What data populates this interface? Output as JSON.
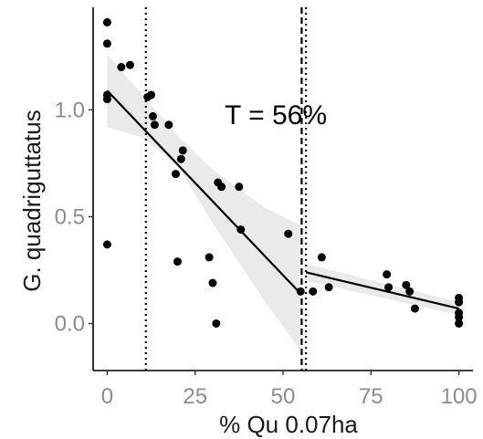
{
  "chart_data": {
    "type": "scatter",
    "title": "",
    "xlabel": "% Qu 0.07ha",
    "ylabel": "G. quadriguttatus",
    "xlim": [
      -4,
      104
    ],
    "ylim": [
      -0.22,
      1.48
    ],
    "x_ticks": [
      0,
      25,
      50,
      75,
      100
    ],
    "x_tick_labels": [
      "0",
      "25",
      "50",
      "75",
      "100"
    ],
    "y_ticks": [
      0.0,
      0.5,
      1.0
    ],
    "y_tick_labels": [
      "0.0",
      "0.5",
      "1.0"
    ],
    "grid": false,
    "legend": "none",
    "annotation": "T = 56%",
    "vlines": [
      {
        "x": 11,
        "style": "dotted"
      },
      {
        "x": 55.3,
        "style": "dashed"
      },
      {
        "x": 56.5,
        "style": "dotted"
      }
    ],
    "points": [
      {
        "x": 0,
        "y": 1.41
      },
      {
        "x": 0,
        "y": 1.31
      },
      {
        "x": 0,
        "y": 1.07
      },
      {
        "x": 0,
        "y": 1.05
      },
      {
        "x": 0,
        "y": 0.37
      },
      {
        "x": 4,
        "y": 1.2
      },
      {
        "x": 6.5,
        "y": 1.21
      },
      {
        "x": 11.5,
        "y": 1.06
      },
      {
        "x": 12.5,
        "y": 1.07
      },
      {
        "x": 13,
        "y": 0.97
      },
      {
        "x": 13.5,
        "y": 0.93
      },
      {
        "x": 17.5,
        "y": 0.93
      },
      {
        "x": 19.5,
        "y": 0.7
      },
      {
        "x": 20,
        "y": 0.29
      },
      {
        "x": 21,
        "y": 0.77
      },
      {
        "x": 21.5,
        "y": 0.81
      },
      {
        "x": 29,
        "y": 0.31
      },
      {
        "x": 30,
        "y": 0.19
      },
      {
        "x": 31,
        "y": 0.0
      },
      {
        "x": 31.5,
        "y": 0.66
      },
      {
        "x": 32.5,
        "y": 0.64
      },
      {
        "x": 37.5,
        "y": 0.64
      },
      {
        "x": 38,
        "y": 0.44
      },
      {
        "x": 51.5,
        "y": 0.42
      },
      {
        "x": 55,
        "y": 0.15
      },
      {
        "x": 58.5,
        "y": 0.15
      },
      {
        "x": 61,
        "y": 0.31
      },
      {
        "x": 63,
        "y": 0.17
      },
      {
        "x": 79.5,
        "y": 0.23
      },
      {
        "x": 80,
        "y": 0.17
      },
      {
        "x": 85,
        "y": 0.18
      },
      {
        "x": 86,
        "y": 0.15
      },
      {
        "x": 87.5,
        "y": 0.07
      },
      {
        "x": 100,
        "y": 0.12
      },
      {
        "x": 100,
        "y": 0.1
      },
      {
        "x": 100,
        "y": 0.05
      },
      {
        "x": 100,
        "y": 0.03
      },
      {
        "x": 100,
        "y": 0.0
      }
    ],
    "fit_segments": [
      {
        "x": [
          0,
          55
        ],
        "y": [
          1.09,
          0.14
        ],
        "ci_upper": [
          1.26,
          1.07,
          0.88,
          0.72,
          0.54,
          0.46
        ],
        "ci_lower": [
          0.92,
          0.87,
          0.74,
          0.47,
          0.1,
          -0.13
        ],
        "ci_x": [
          0,
          10,
          20,
          30,
          45,
          55
        ]
      },
      {
        "x": [
          56.5,
          100
        ],
        "y": [
          0.24,
          0.07
        ],
        "ci_upper": [
          0.28,
          0.1
        ],
        "ci_lower": [
          0.2,
          0.04
        ],
        "ci_x": [
          56.5,
          100
        ]
      }
    ],
    "colors": {
      "points": "#000000",
      "line": "#000000",
      "ribbon": "#d9d9d9",
      "tick_text": "#8c8c8c",
      "axis": "#000000"
    }
  }
}
